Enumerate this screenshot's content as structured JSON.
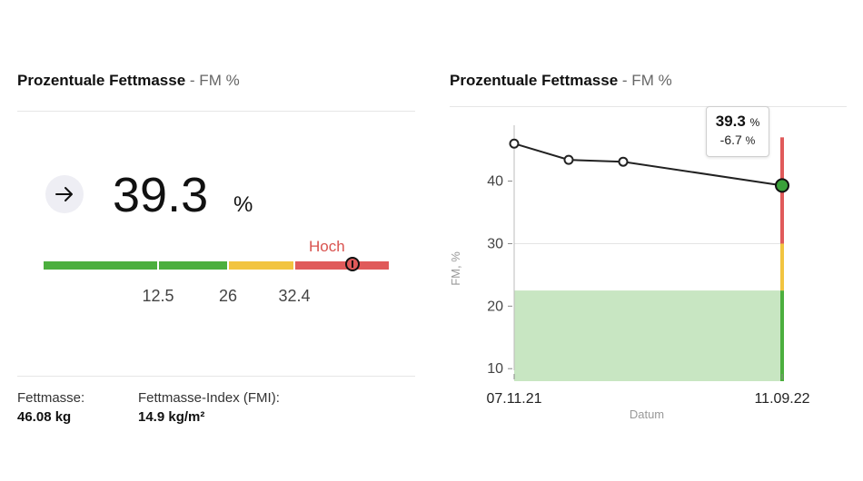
{
  "left_panel": {
    "title": "Prozentuale Fettmasse",
    "subtitle": "- FM %",
    "trend_icon": "arrow-right-icon",
    "value": "39.3",
    "unit": "%",
    "level_label": "Hoch",
    "gauge": {
      "ticks": [
        "12.5",
        "26",
        "32.4"
      ],
      "colors": {
        "green": "#4caf3e",
        "yellow": "#f2c440",
        "red": "#e05a5a"
      }
    },
    "stats": [
      {
        "label": "Fettmasse:",
        "value": "46.08 kg"
      },
      {
        "label": "Fettmasse-Index (FMI):",
        "value": "14.9 kg/m²"
      }
    ]
  },
  "right_panel": {
    "title": "Prozentuale Fettmasse",
    "subtitle": "- FM %",
    "tooltip": {
      "value": "39.3",
      "unit": "%",
      "delta": "-6.7",
      "delta_unit": "%"
    }
  },
  "chart_data": {
    "type": "line",
    "title": "",
    "xlabel": "Datum",
    "ylabel": "FM, %",
    "x": [
      "07.11.21",
      "13.01.22",
      "10.04.22",
      "11.09.22"
    ],
    "x_tick_labels": [
      "07.11.21",
      "11.09.22"
    ],
    "series": [
      {
        "values": [
          46.0,
          43.4,
          43.1,
          39.3
        ]
      }
    ],
    "ylim": [
      8,
      53
    ],
    "yticks": [
      10,
      20,
      30,
      40
    ],
    "bands": [
      {
        "from": 8,
        "to": 22.5,
        "color": "#c8e6c2"
      },
      {
        "from": 8,
        "to": 22.5,
        "color": "#4caf3e",
        "role": "indicator"
      },
      {
        "from": 22.5,
        "to": 30,
        "color": "#f2c440",
        "role": "indicator"
      },
      {
        "from": 30,
        "to": 47,
        "color": "#e05a5a",
        "role": "indicator"
      }
    ],
    "grid": false,
    "highlight_last": true
  }
}
